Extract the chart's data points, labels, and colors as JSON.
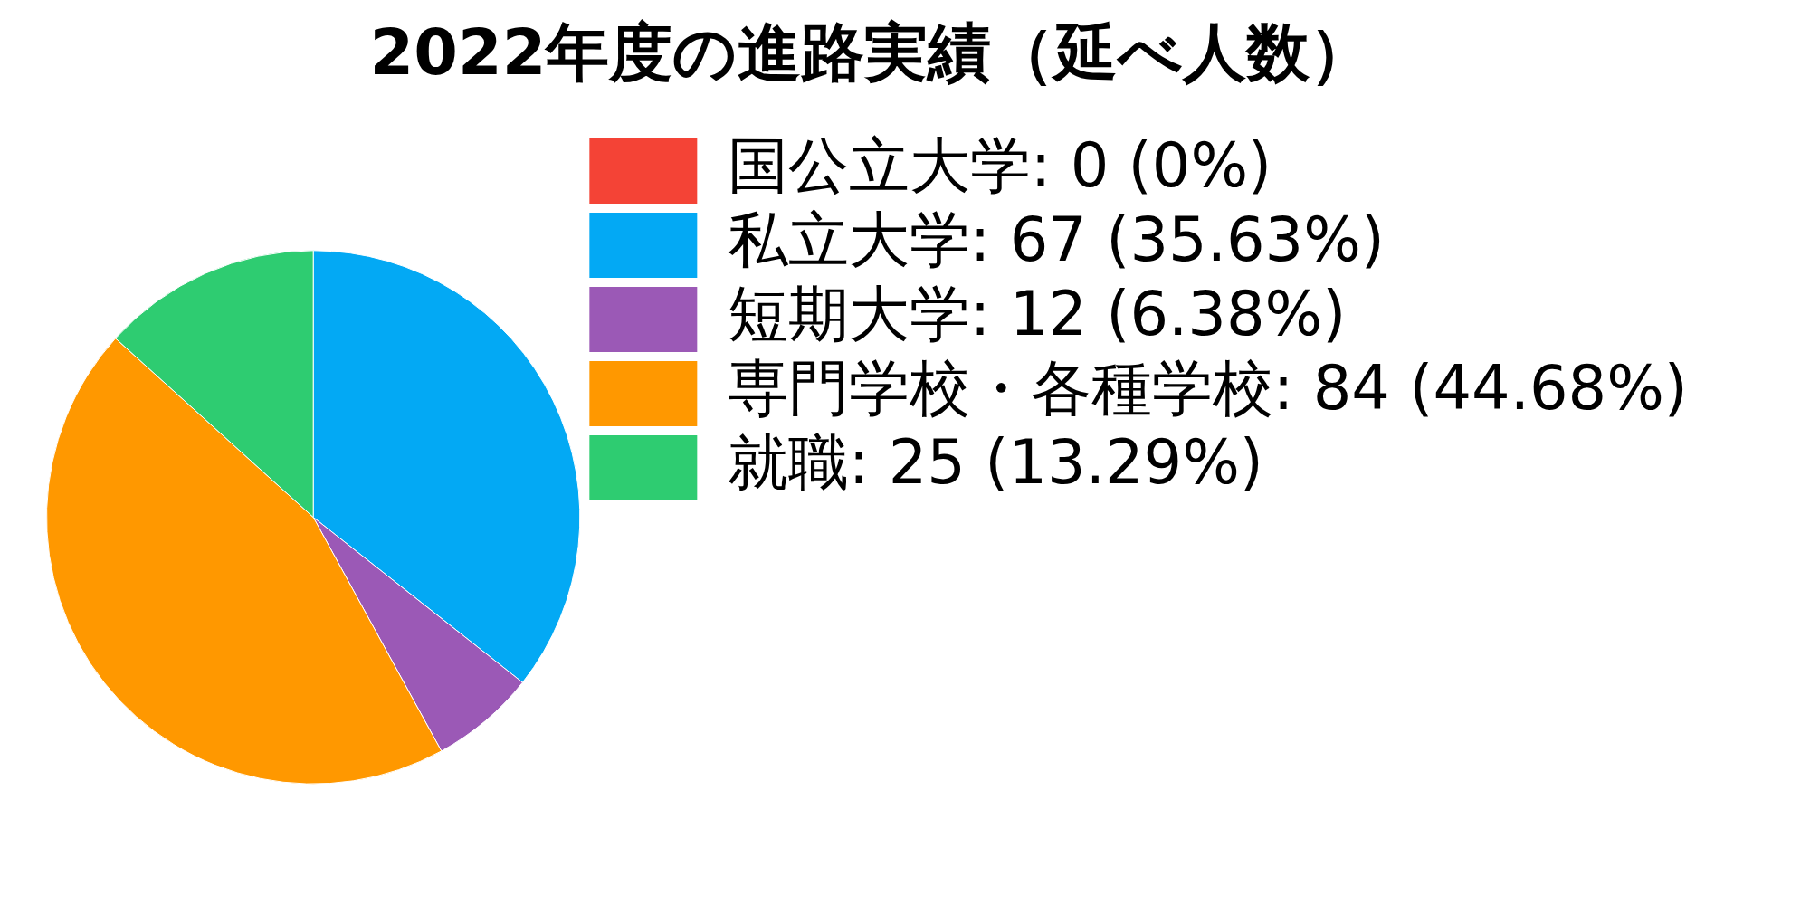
{
  "chart_data": {
    "type": "pie",
    "title": "2022年度の進路実績（延べ人数）",
    "categories": [
      "国公立大学",
      "私立大学",
      "短期大学",
      "専門学校・各種学校",
      "就職"
    ],
    "values": [
      0,
      67,
      12,
      84,
      25
    ],
    "colors": [
      "#f44336",
      "#03a9f4",
      "#9b59b6",
      "#ff9800",
      "#2ecc71"
    ],
    "value_labels": [
      "0 (0%)",
      "67 (35.63%)",
      "12 (6.38%)",
      "84 (44.68%)",
      "25 (13.29%)"
    ],
    "legend": "top right"
  }
}
